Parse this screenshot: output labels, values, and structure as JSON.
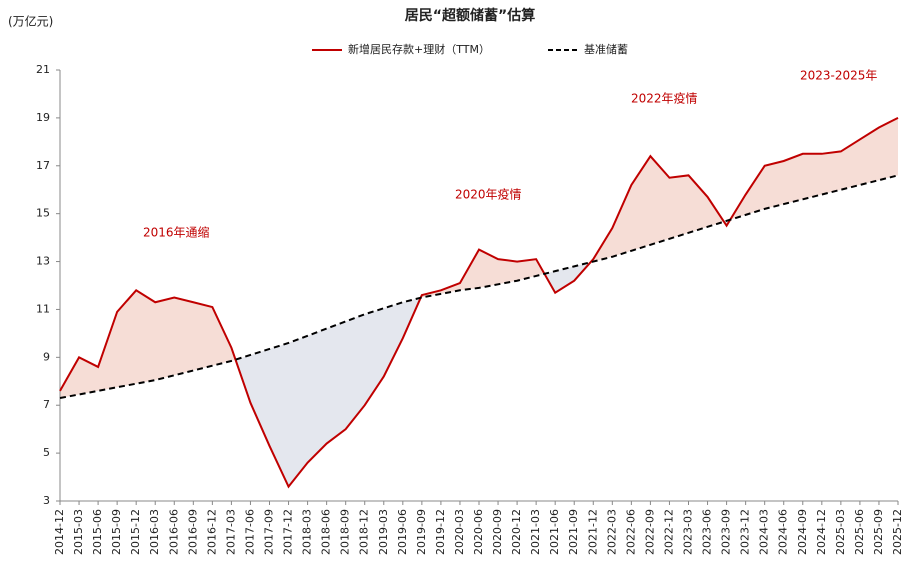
{
  "chart_data": {
    "type": "line",
    "title": "居民“超额储蓄”估算",
    "y_axis_label": "(万亿元)",
    "categories": [
      "2014-12",
      "2015-03",
      "2015-06",
      "2015-09",
      "2015-12",
      "2016-03",
      "2016-06",
      "2016-09",
      "2016-12",
      "2017-03",
      "2017-06",
      "2017-09",
      "2017-12",
      "2018-03",
      "2018-06",
      "2018-09",
      "2018-12",
      "2019-03",
      "2019-06",
      "2019-09",
      "2019-12",
      "2020-03",
      "2020-06",
      "2020-09",
      "2020-12",
      "2021-03",
      "2021-06",
      "2021-09",
      "2021-12",
      "2022-03",
      "2022-06",
      "2022-09",
      "2022-12",
      "2023-03",
      "2023-06",
      "2023-09",
      "2023-12",
      "2024-03",
      "2024-06",
      "2024-09",
      "2024-12",
      "2025-03",
      "2025-06",
      "2025-09",
      "2025-12"
    ],
    "series": [
      {
        "name": "新增居民存款+理财（TTM）",
        "color": "#c00000",
        "dash": "solid",
        "values": [
          7.6,
          9.0,
          8.6,
          10.9,
          11.8,
          11.3,
          11.5,
          11.3,
          11.1,
          9.4,
          7.1,
          5.3,
          3.6,
          4.6,
          5.4,
          6.0,
          7.0,
          8.2,
          9.8,
          11.6,
          11.8,
          12.1,
          13.5,
          13.1,
          13.0,
          13.1,
          11.7,
          12.2,
          13.1,
          14.4,
          16.2,
          17.4,
          16.5,
          16.6,
          15.7,
          14.5,
          15.8,
          17.0,
          17.2,
          17.5,
          17.5,
          17.6,
          18.1,
          18.6,
          19.0
        ]
      },
      {
        "name": "基准储蓄",
        "color": "#000000",
        "dash": "dashed",
        "values": [
          7.3,
          7.45,
          7.6,
          7.75,
          7.9,
          8.05,
          8.25,
          8.45,
          8.65,
          8.85,
          9.1,
          9.35,
          9.6,
          9.9,
          10.2,
          10.5,
          10.8,
          11.05,
          11.3,
          11.5,
          11.65,
          11.8,
          11.9,
          12.05,
          12.2,
          12.4,
          12.6,
          12.8,
          13.0,
          13.2,
          13.45,
          13.7,
          13.95,
          14.2,
          14.45,
          14.7,
          14.95,
          15.2,
          15.4,
          15.6,
          15.8,
          16.0,
          16.2,
          16.4,
          16.6
        ]
      }
    ],
    "fill_above_color": "#f6ddd6",
    "fill_below_color": "#e4e7ee",
    "annotations": [
      "2016年通缩",
      "2020年疫情",
      "2022年疫情",
      "2023-2025年"
    ],
    "ylim": [
      3,
      21
    ],
    "yticks": [
      3,
      5,
      7,
      9,
      11,
      13,
      15,
      17,
      19,
      21
    ],
    "grid": false
  }
}
